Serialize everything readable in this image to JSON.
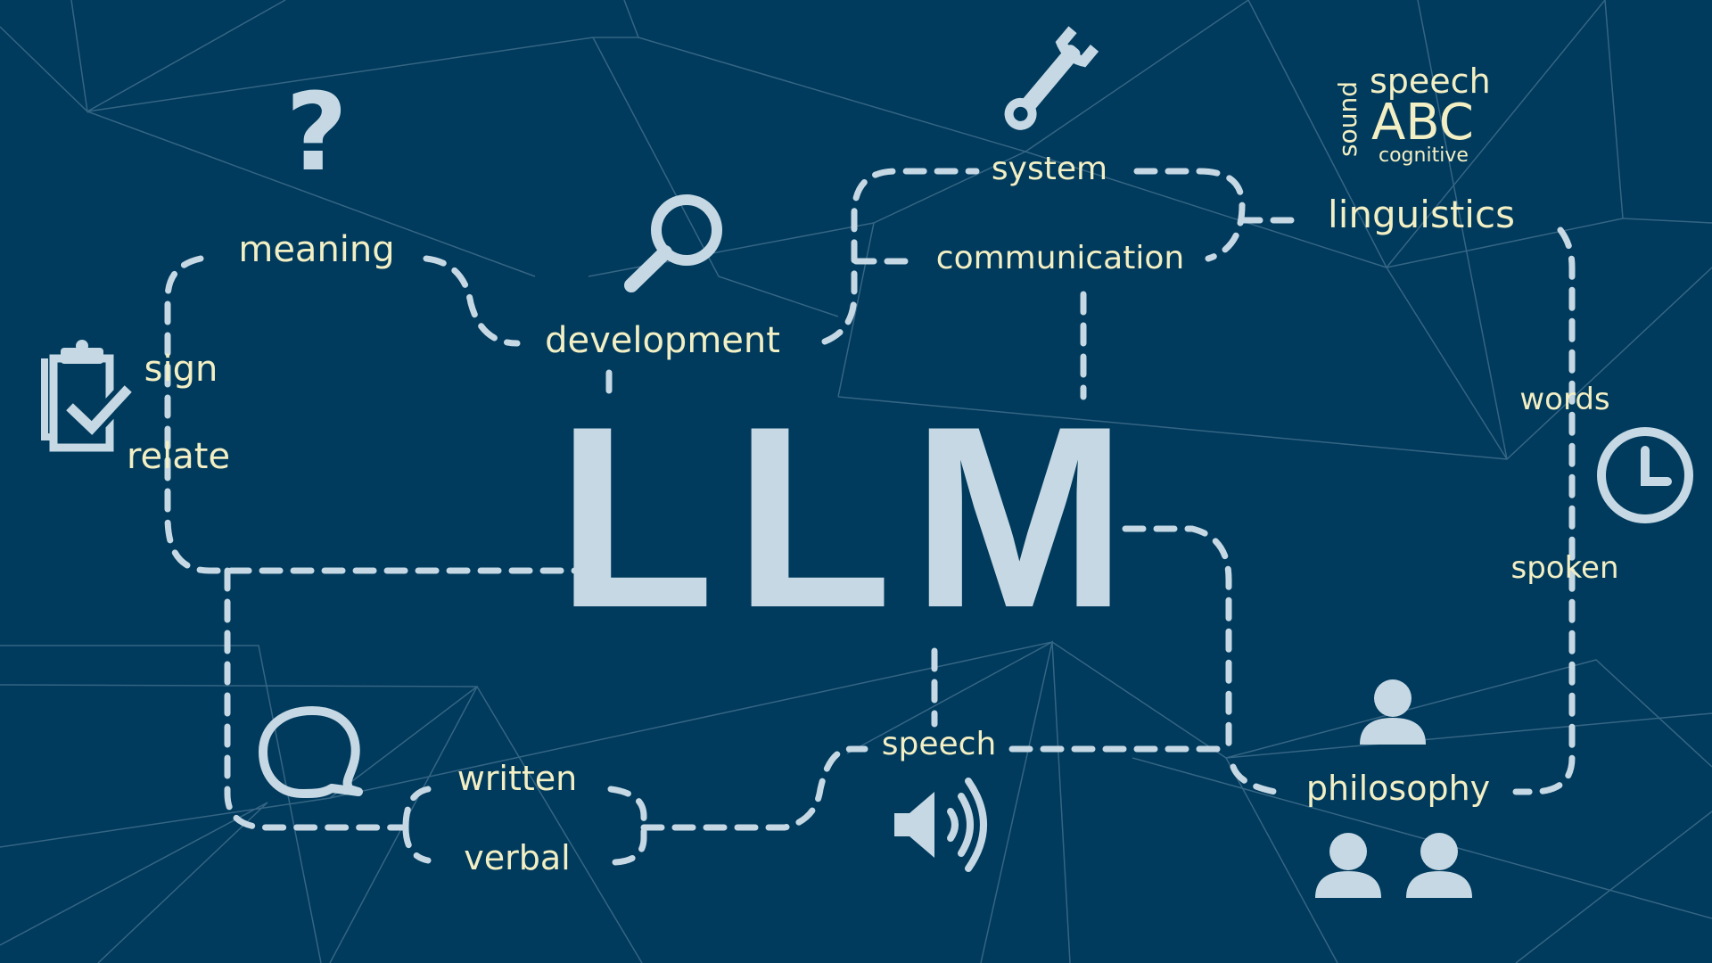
{
  "diagram": {
    "center_label": "LLM",
    "words": {
      "meaning": "meaning",
      "development": "development",
      "system": "system",
      "communication": "communication",
      "linguistics": "linguistics",
      "sign": "sign",
      "relate": "relate",
      "words": "words",
      "spoken": "spoken",
      "written": "written",
      "verbal": "verbal",
      "speech": "speech",
      "philosophy": "philosophy"
    },
    "word_cloud": {
      "speech": "speech",
      "abc": "ABC",
      "sound": "sound",
      "cognitive": "cognitive"
    },
    "icons": [
      "question-mark",
      "magnifier",
      "wrench",
      "clipboard-check",
      "clock",
      "speech-bubble",
      "speaker",
      "people"
    ]
  },
  "colors": {
    "background": "#003a5c",
    "accent": "#c5d8e4",
    "text": "#f3efc4",
    "mesh": "#4c7896"
  }
}
